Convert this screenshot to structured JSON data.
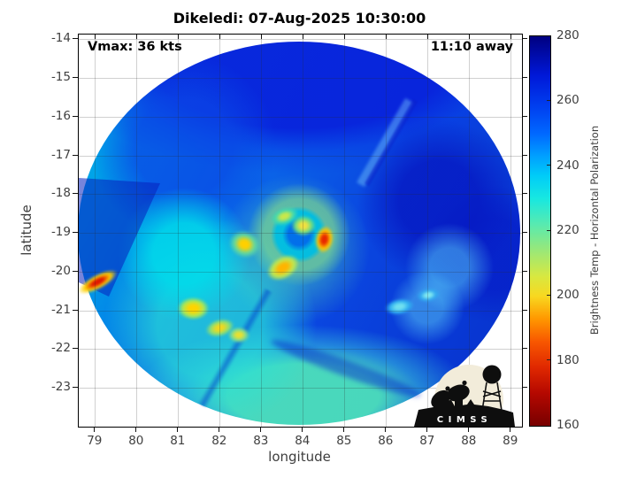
{
  "figure": {
    "background": "#ffffff"
  },
  "chart_data": {
    "type": "heatmap",
    "title": "Dikeledi: 07-Aug-2025 10:30:00",
    "annotations": [
      {
        "text": "Vmax: 36 kts",
        "position": "top-left"
      },
      {
        "text": "11:10 away",
        "position": "top-right"
      }
    ],
    "xlabel": "longitude",
    "ylabel": "latitude",
    "xlim": [
      78.6,
      89.26
    ],
    "ylim": [
      -23.99,
      -13.87
    ],
    "x_ticks": [
      79,
      80,
      81,
      82,
      83,
      84,
      85,
      86,
      87,
      88,
      89
    ],
    "y_ticks": [
      -14,
      -15,
      -16,
      -17,
      -18,
      -19,
      -20,
      -21,
      -22,
      -23
    ],
    "grid": true,
    "colorbar": {
      "label": "Brightness Temp - Horizontal Polarization",
      "min": 160,
      "max": 280,
      "ticks": [
        160,
        180,
        200,
        220,
        240,
        260,
        280
      ],
      "stops": [
        [
          280,
          "#000080"
        ],
        [
          268,
          "#0018d8"
        ],
        [
          258,
          "#0040f0"
        ],
        [
          250,
          "#0068ff"
        ],
        [
          243,
          "#00a0ff"
        ],
        [
          237,
          "#00ccf8"
        ],
        [
          230,
          "#18e8e0"
        ],
        [
          222,
          "#58eab0"
        ],
        [
          214,
          "#9ae878"
        ],
        [
          206,
          "#d8e840"
        ],
        [
          200,
          "#f8d820"
        ],
        [
          193,
          "#ff9800"
        ],
        [
          186,
          "#f85800"
        ],
        [
          178,
          "#e02800"
        ],
        [
          170,
          "#b40800"
        ],
        [
          160,
          "#780000"
        ]
      ]
    },
    "swath": {
      "center_lon": 83.9,
      "center_lat": -19.0,
      "radius_lon_deg": 5.32,
      "radius_lat_deg": 4.94,
      "background_temp_K": "mostly 235-265 K (blue/cyan), convective cold spots 170-215 K"
    },
    "hotspots": [
      {
        "lon": 79.05,
        "lat": -20.25,
        "temp_K": 178,
        "w_deg": 0.75,
        "h_deg": 0.28,
        "rot_deg": -28,
        "core": "#e01800",
        "halo": "#ffd000"
      },
      {
        "lon": 81.35,
        "lat": -20.95,
        "temp_K": 202,
        "w_deg": 0.55,
        "h_deg": 0.42,
        "rot_deg": 0,
        "core": "#ffd400",
        "halo": "#b0e850"
      },
      {
        "lon": 82.0,
        "lat": -21.45,
        "temp_K": 205,
        "w_deg": 0.5,
        "h_deg": 0.33,
        "rot_deg": -15,
        "core": "#f0d820",
        "halo": "#90e070"
      },
      {
        "lon": 82.45,
        "lat": -21.62,
        "temp_K": 207,
        "w_deg": 0.38,
        "h_deg": 0.3,
        "rot_deg": 0,
        "core": "#e8e030",
        "halo": "#80dd90"
      },
      {
        "lon": 82.6,
        "lat": -19.28,
        "temp_K": 200,
        "w_deg": 0.55,
        "h_deg": 0.5,
        "rot_deg": 20,
        "core": "#ffd000",
        "halo": "#60d8a0"
      },
      {
        "lon": 83.5,
        "lat": -19.9,
        "temp_K": 196,
        "w_deg": 0.6,
        "h_deg": 0.42,
        "rot_deg": -30,
        "core": "#ffb400",
        "halo": "#c0e850"
      },
      {
        "lon": 84.5,
        "lat": -19.15,
        "temp_K": 172,
        "w_deg": 0.32,
        "h_deg": 0.52,
        "rot_deg": 10,
        "core": "#e82800",
        "halo": "#ffc800"
      },
      {
        "lon": 84.0,
        "lat": -18.8,
        "temp_K": 206,
        "w_deg": 0.42,
        "h_deg": 0.38,
        "rot_deg": 0,
        "core": "#f0e040",
        "halo": "#70dd80"
      },
      {
        "lon": 83.55,
        "lat": -18.55,
        "temp_K": 212,
        "w_deg": 0.5,
        "h_deg": 0.32,
        "rot_deg": -20,
        "core": "#c8e84c",
        "halo": "#40d8b0"
      },
      {
        "lon": 86.3,
        "lat": -20.9,
        "temp_K": 232,
        "w_deg": 0.5,
        "h_deg": 0.3,
        "rot_deg": -10,
        "core": "#70e0f0",
        "halo": "#30b0f0"
      },
      {
        "lon": 87.0,
        "lat": -20.6,
        "temp_K": 234,
        "w_deg": 0.4,
        "h_deg": 0.25,
        "rot_deg": -10,
        "core": "#80e8f0",
        "halo": "#30a8f0"
      }
    ]
  },
  "logo": {
    "name": "CIMSS",
    "text": "CIMSS"
  }
}
